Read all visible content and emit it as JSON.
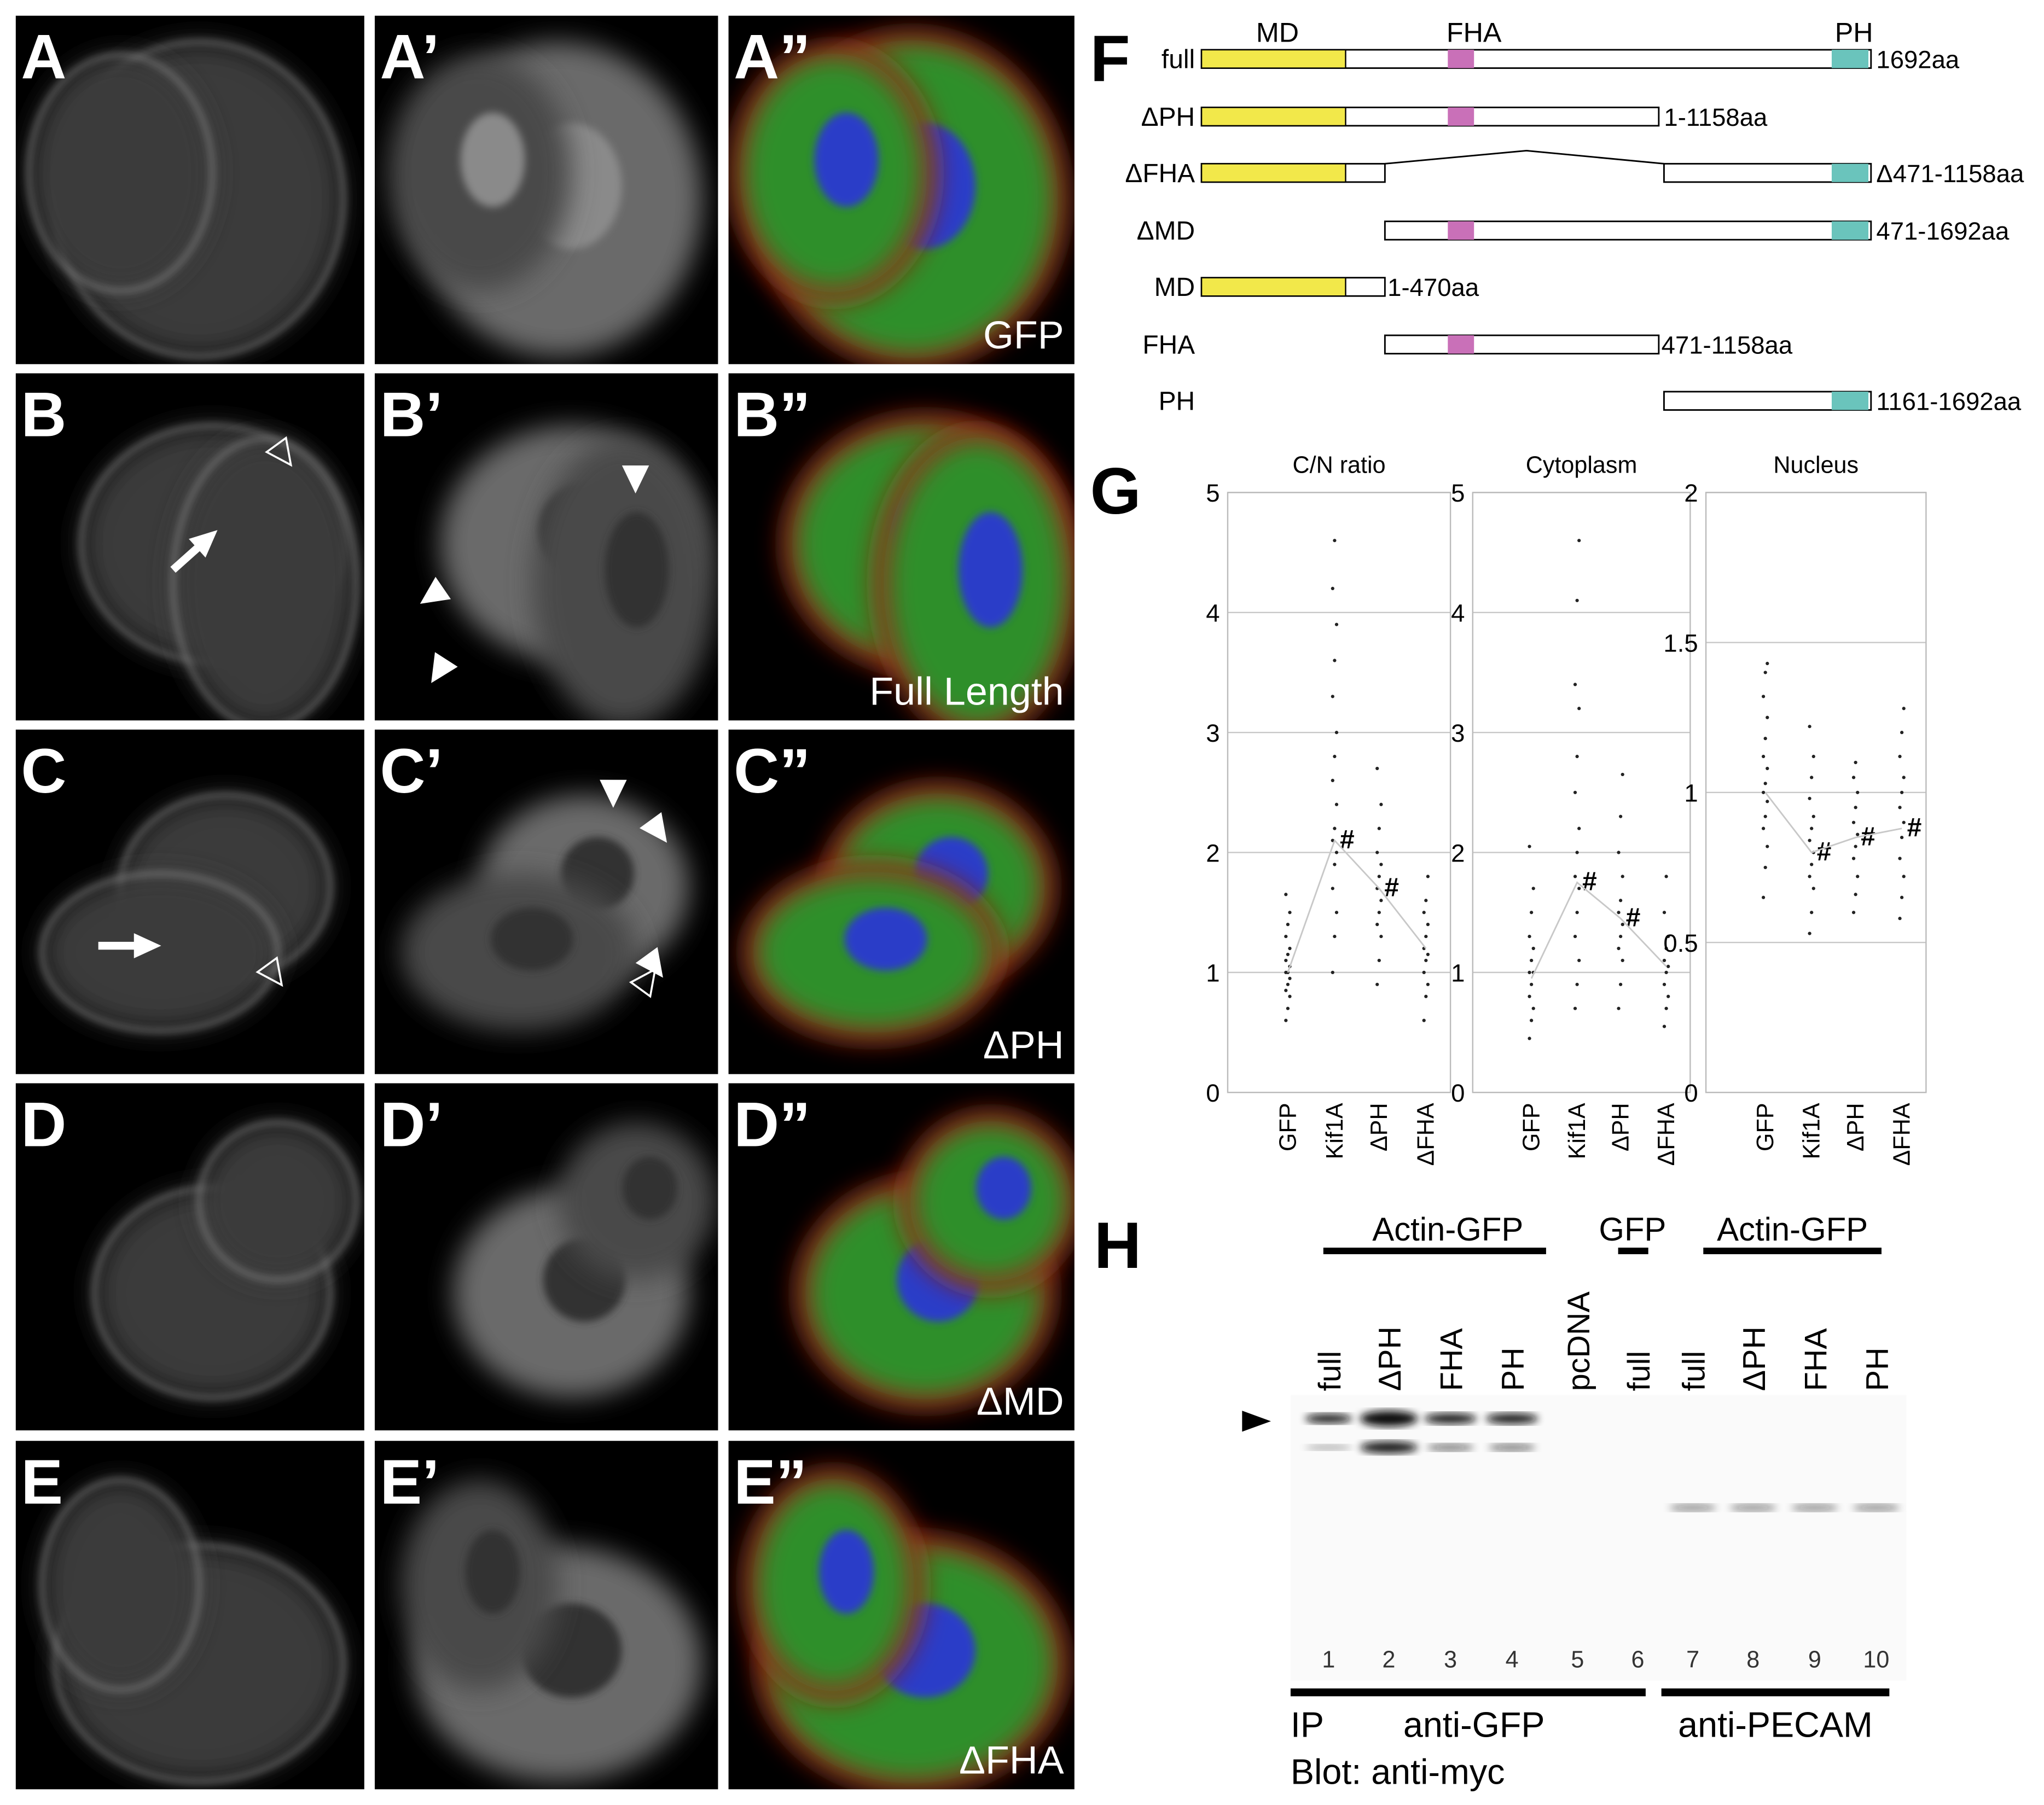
{
  "micrographs": {
    "rows": [
      {
        "labels": [
          "A",
          "A’",
          "A”"
        ],
        "caption": "GFP"
      },
      {
        "labels": [
          "B",
          "B’",
          "B”"
        ],
        "caption": "Full Length"
      },
      {
        "labels": [
          "C",
          "C’",
          "C”"
        ],
        "caption": "ΔPH"
      },
      {
        "labels": [
          "D",
          "D’",
          "D”"
        ],
        "caption": "ΔMD"
      },
      {
        "labels": [
          "E",
          "E’",
          "E”"
        ],
        "caption": "ΔFHA"
      }
    ]
  },
  "panel_f": {
    "letter": "F",
    "domains": [
      "MD",
      "FHA",
      "PH"
    ],
    "constructs": [
      {
        "name": "full",
        "range": "1692aa"
      },
      {
        "name": "ΔPH",
        "range": "1-1158aa"
      },
      {
        "name": "ΔFHA",
        "range": "Δ471-1158aa"
      },
      {
        "name": "ΔMD",
        "range": "471-1692aa"
      },
      {
        "name": "MD",
        "range": "1-470aa"
      },
      {
        "name": "FHA",
        "range": "471-1158aa"
      },
      {
        "name": "PH",
        "range": "1161-1692aa"
      }
    ]
  },
  "panel_g": {
    "letter": "G"
  },
  "chart_data": [
    {
      "type": "strip",
      "title": "C/N ratio",
      "categories": [
        "GFP",
        "Kif1A",
        "ΔPH",
        "ΔFHA"
      ],
      "points": [
        [
          0.6,
          0.7,
          0.8,
          0.85,
          0.9,
          0.95,
          1.0,
          1.0,
          1.05,
          1.1,
          1.15,
          1.2,
          1.3,
          1.4,
          1.5,
          1.65
        ],
        [
          1.0,
          1.3,
          1.5,
          1.7,
          1.9,
          2.0,
          2.1,
          2.2,
          2.4,
          2.6,
          2.8,
          3.0,
          3.3,
          3.6,
          3.9,
          4.2,
          4.6
        ],
        [
          0.9,
          1.1,
          1.3,
          1.4,
          1.5,
          1.6,
          1.7,
          1.8,
          1.9,
          2.0,
          2.2,
          2.4,
          2.7
        ],
        [
          0.6,
          0.8,
          0.9,
          1.0,
          1.1,
          1.15,
          1.2,
          1.3,
          1.4,
          1.5,
          1.6,
          1.8
        ]
      ],
      "means": [
        1.0,
        2.1,
        1.7,
        1.2
      ],
      "annotations": [
        null,
        "#",
        "#",
        null
      ],
      "ylim": [
        0,
        5
      ],
      "yticks": [
        0,
        1,
        2,
        3,
        4,
        5
      ],
      "grid": true,
      "color": "#222222"
    },
    {
      "type": "strip",
      "title": "Cytoplasm",
      "categories": [
        "GFP",
        "Kif1A",
        "ΔPH",
        "ΔFHA"
      ],
      "points": [
        [
          0.45,
          0.6,
          0.7,
          0.8,
          0.9,
          1.0,
          1.0,
          1.1,
          1.2,
          1.3,
          1.5,
          1.7,
          2.05
        ],
        [
          0.7,
          0.9,
          1.1,
          1.3,
          1.5,
          1.7,
          1.8,
          2.0,
          2.2,
          2.5,
          2.8,
          3.2,
          3.4,
          4.1,
          4.6
        ],
        [
          0.7,
          0.9,
          1.1,
          1.2,
          1.3,
          1.4,
          1.5,
          1.6,
          1.8,
          2.0,
          2.3,
          2.65
        ],
        [
          0.55,
          0.7,
          0.8,
          0.9,
          1.0,
          1.05,
          1.1,
          1.2,
          1.3,
          1.5,
          1.8
        ]
      ],
      "means": [
        0.95,
        1.75,
        1.45,
        1.05
      ],
      "annotations": [
        null,
        "#",
        "#",
        null
      ],
      "ylim": [
        0,
        5
      ],
      "yticks": [
        0,
        1,
        2,
        3,
        4,
        5
      ],
      "grid": true,
      "color": "#222222"
    },
    {
      "type": "strip",
      "title": "Nucleus",
      "categories": [
        "GFP",
        "Kif1A",
        "ΔPH",
        "ΔFHA"
      ],
      "points": [
        [
          0.65,
          0.75,
          0.82,
          0.88,
          0.92,
          0.97,
          1.0,
          1.03,
          1.08,
          1.12,
          1.18,
          1.25,
          1.32,
          1.4,
          1.43
        ],
        [
          0.53,
          0.6,
          0.68,
          0.72,
          0.76,
          0.8,
          0.84,
          0.88,
          0.92,
          0.98,
          1.05,
          1.12,
          1.22
        ],
        [
          0.6,
          0.66,
          0.72,
          0.78,
          0.82,
          0.86,
          0.9,
          0.95,
          1.0,
          1.05,
          1.1
        ],
        [
          0.58,
          0.65,
          0.72,
          0.78,
          0.85,
          0.9,
          0.95,
          1.0,
          1.05,
          1.12,
          1.2,
          1.28
        ]
      ],
      "means": [
        1.0,
        0.8,
        0.85,
        0.88
      ],
      "annotations": [
        null,
        "#",
        "#",
        "#"
      ],
      "ylim": [
        0,
        2
      ],
      "yticks": [
        0,
        0.5,
        1,
        1.5,
        2
      ],
      "grid": true,
      "color": "#222222"
    }
  ],
  "panel_h": {
    "letter": "H",
    "groups": [
      "Actin-GFP",
      "GFP",
      "Actin-GFP"
    ],
    "lanes": [
      {
        "label": "full",
        "number": 1
      },
      {
        "label": "ΔPH",
        "number": 2
      },
      {
        "label": "FHA",
        "number": 3
      },
      {
        "label": "PH",
        "number": 4
      },
      {
        "label": "pcDNA",
        "number": 5
      },
      {
        "label": "full",
        "number": 6
      },
      {
        "label": "full",
        "number": 7
      },
      {
        "label": "ΔPH",
        "number": 8
      },
      {
        "label": "FHA",
        "number": 9
      },
      {
        "label": "PH",
        "number": 10
      }
    ],
    "ip_label": "IP",
    "ip_antibodies": [
      "anti-GFP",
      "anti-PECAM"
    ],
    "blot_label": "Blot: anti-myc"
  }
}
